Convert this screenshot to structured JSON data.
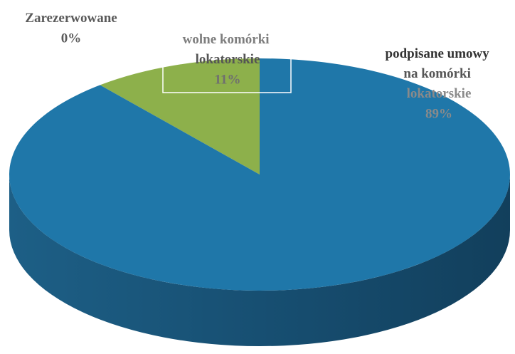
{
  "chart_data": {
    "type": "pie",
    "categories": [
      "Zarezerwowane",
      "wolne komórki lokatorskie",
      "podpisane umowy na komórki lokatorskie"
    ],
    "values": [
      0,
      11,
      89
    ],
    "value_labels": [
      "0%",
      "11%",
      "89%"
    ],
    "colors": [
      "#c0504d",
      "#8db04b",
      "#1f77a9"
    ]
  }
}
